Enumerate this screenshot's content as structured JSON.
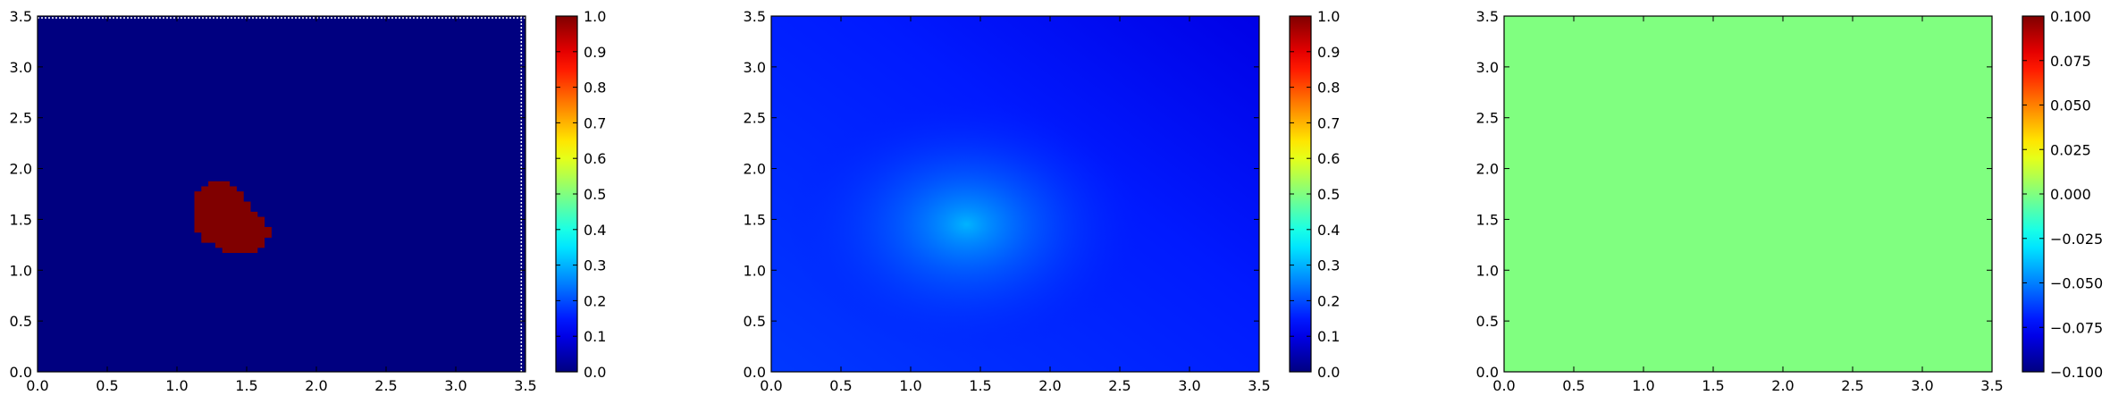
{
  "chart_data": [
    {
      "type": "heatmap",
      "title": "",
      "xlabel": "",
      "ylabel": "",
      "xlim": [
        0,
        3.5
      ],
      "ylim": [
        0,
        3.5
      ],
      "x_ticks": [
        "0.0",
        "0.5",
        "1.0",
        "1.5",
        "2.0",
        "2.5",
        "3.0",
        "3.5"
      ],
      "y_ticks": [
        "0.0",
        "0.5",
        "1.0",
        "1.5",
        "2.0",
        "2.5",
        "3.0",
        "3.5"
      ],
      "x_tick_values": [
        0,
        0.5,
        1,
        1.5,
        2,
        2.5,
        3,
        3.5
      ],
      "y_tick_values": [
        0,
        0.5,
        1,
        1.5,
        2,
        2.5,
        3,
        3.5
      ],
      "colormap": "jet",
      "colorbar_range": [
        0,
        1
      ],
      "colorbar_ticks": [
        "0.0",
        "0.1",
        "0.2",
        "0.3",
        "0.4",
        "0.5",
        "0.6",
        "0.7",
        "0.8",
        "0.9",
        "1.0"
      ],
      "colorbar_tick_values": [
        0,
        0.1,
        0.2,
        0.3,
        0.4,
        0.5,
        0.6,
        0.7,
        0.8,
        0.9,
        1.0
      ],
      "background_value": 0,
      "blob": {
        "value": 1,
        "cells": [
          [
            1.25,
            1.85
          ],
          [
            1.3,
            1.85
          ],
          [
            1.35,
            1.85
          ],
          [
            1.2,
            1.8
          ],
          [
            1.25,
            1.8
          ],
          [
            1.3,
            1.8
          ],
          [
            1.35,
            1.8
          ],
          [
            1.4,
            1.8
          ],
          [
            1.15,
            1.75
          ],
          [
            1.2,
            1.75
          ],
          [
            1.25,
            1.75
          ],
          [
            1.3,
            1.75
          ],
          [
            1.35,
            1.75
          ],
          [
            1.4,
            1.75
          ],
          [
            1.45,
            1.75
          ],
          [
            1.15,
            1.7
          ],
          [
            1.2,
            1.7
          ],
          [
            1.25,
            1.7
          ],
          [
            1.3,
            1.7
          ],
          [
            1.35,
            1.7
          ],
          [
            1.4,
            1.7
          ],
          [
            1.45,
            1.7
          ],
          [
            1.15,
            1.65
          ],
          [
            1.2,
            1.65
          ],
          [
            1.25,
            1.65
          ],
          [
            1.3,
            1.65
          ],
          [
            1.35,
            1.65
          ],
          [
            1.4,
            1.65
          ],
          [
            1.45,
            1.65
          ],
          [
            1.5,
            1.65
          ],
          [
            1.15,
            1.6
          ],
          [
            1.2,
            1.6
          ],
          [
            1.25,
            1.6
          ],
          [
            1.3,
            1.6
          ],
          [
            1.35,
            1.6
          ],
          [
            1.4,
            1.6
          ],
          [
            1.45,
            1.6
          ],
          [
            1.5,
            1.6
          ],
          [
            1.15,
            1.55
          ],
          [
            1.2,
            1.55
          ],
          [
            1.25,
            1.55
          ],
          [
            1.3,
            1.55
          ],
          [
            1.35,
            1.55
          ],
          [
            1.4,
            1.55
          ],
          [
            1.45,
            1.55
          ],
          [
            1.5,
            1.55
          ],
          [
            1.55,
            1.55
          ],
          [
            1.15,
            1.5
          ],
          [
            1.2,
            1.5
          ],
          [
            1.25,
            1.5
          ],
          [
            1.3,
            1.5
          ],
          [
            1.35,
            1.5
          ],
          [
            1.4,
            1.5
          ],
          [
            1.45,
            1.5
          ],
          [
            1.5,
            1.5
          ],
          [
            1.55,
            1.5
          ],
          [
            1.6,
            1.5
          ],
          [
            1.15,
            1.45
          ],
          [
            1.2,
            1.45
          ],
          [
            1.25,
            1.45
          ],
          [
            1.3,
            1.45
          ],
          [
            1.35,
            1.45
          ],
          [
            1.4,
            1.45
          ],
          [
            1.45,
            1.45
          ],
          [
            1.5,
            1.45
          ],
          [
            1.55,
            1.45
          ],
          [
            1.6,
            1.45
          ],
          [
            1.15,
            1.4
          ],
          [
            1.2,
            1.4
          ],
          [
            1.25,
            1.4
          ],
          [
            1.3,
            1.4
          ],
          [
            1.35,
            1.4
          ],
          [
            1.4,
            1.4
          ],
          [
            1.45,
            1.4
          ],
          [
            1.5,
            1.4
          ],
          [
            1.55,
            1.4
          ],
          [
            1.6,
            1.4
          ],
          [
            1.65,
            1.4
          ],
          [
            1.2,
            1.35
          ],
          [
            1.25,
            1.35
          ],
          [
            1.3,
            1.35
          ],
          [
            1.35,
            1.35
          ],
          [
            1.4,
            1.35
          ],
          [
            1.45,
            1.35
          ],
          [
            1.5,
            1.35
          ],
          [
            1.55,
            1.35
          ],
          [
            1.6,
            1.35
          ],
          [
            1.65,
            1.35
          ],
          [
            1.2,
            1.3
          ],
          [
            1.25,
            1.3
          ],
          [
            1.3,
            1.3
          ],
          [
            1.35,
            1.3
          ],
          [
            1.4,
            1.3
          ],
          [
            1.45,
            1.3
          ],
          [
            1.5,
            1.3
          ],
          [
            1.55,
            1.3
          ],
          [
            1.6,
            1.3
          ],
          [
            1.3,
            1.25
          ],
          [
            1.35,
            1.25
          ],
          [
            1.4,
            1.25
          ],
          [
            1.45,
            1.25
          ],
          [
            1.5,
            1.25
          ],
          [
            1.55,
            1.25
          ],
          [
            1.6,
            1.25
          ],
          [
            1.35,
            1.2
          ],
          [
            1.4,
            1.2
          ],
          [
            1.45,
            1.2
          ],
          [
            1.5,
            1.2
          ],
          [
            1.55,
            1.2
          ]
        ]
      }
    },
    {
      "type": "heatmap",
      "title": "",
      "xlabel": "",
      "ylabel": "",
      "xlim": [
        0,
        3.5
      ],
      "ylim": [
        0,
        3.5
      ],
      "x_ticks": [
        "0.0",
        "0.5",
        "1.0",
        "1.5",
        "2.0",
        "2.5",
        "3.0",
        "3.5"
      ],
      "y_ticks": [
        "0.0",
        "0.5",
        "1.0",
        "1.5",
        "2.0",
        "2.5",
        "3.0",
        "3.5"
      ],
      "x_tick_values": [
        0,
        0.5,
        1,
        1.5,
        2,
        2.5,
        3,
        3.5
      ],
      "y_tick_values": [
        0,
        0.5,
        1,
        1.5,
        2,
        2.5,
        3,
        3.5
      ],
      "colormap": "jet",
      "colorbar_range": [
        0,
        1
      ],
      "colorbar_ticks": [
        "0.0",
        "0.1",
        "0.2",
        "0.3",
        "0.4",
        "0.5",
        "0.6",
        "0.7",
        "0.8",
        "0.9",
        "1.0"
      ],
      "colorbar_tick_values": [
        0,
        0.1,
        0.2,
        0.3,
        0.4,
        0.5,
        0.6,
        0.7,
        0.8,
        0.9,
        1.0
      ],
      "field": {
        "peak_center": [
          1.4,
          1.45
        ],
        "peak_value": 0.3,
        "base_value": 0.15,
        "top_right_value": 0.1
      }
    },
    {
      "type": "heatmap",
      "title": "",
      "xlabel": "",
      "ylabel": "",
      "xlim": [
        0,
        3.5
      ],
      "ylim": [
        0,
        3.5
      ],
      "x_ticks": [
        "0.0",
        "0.5",
        "1.0",
        "1.5",
        "2.0",
        "2.5",
        "3.0",
        "3.5"
      ],
      "y_ticks": [
        "0.0",
        "0.5",
        "1.0",
        "1.5",
        "2.0",
        "2.5",
        "3.0",
        "3.5"
      ],
      "x_tick_values": [
        0,
        0.5,
        1,
        1.5,
        2,
        2.5,
        3,
        3.5
      ],
      "y_tick_values": [
        0,
        0.5,
        1,
        1.5,
        2,
        2.5,
        3,
        3.5
      ],
      "colormap": "jet",
      "colorbar_range": [
        -0.1,
        0.1
      ],
      "colorbar_ticks": [
        "−0.100",
        "−0.075",
        "−0.050",
        "−0.025",
        "0.000",
        "0.025",
        "0.050",
        "0.075",
        "0.100"
      ],
      "colorbar_tick_values": [
        -0.1,
        -0.075,
        -0.05,
        -0.025,
        0,
        0.025,
        0.05,
        0.075,
        0.1
      ],
      "uniform_value": 0
    }
  ]
}
